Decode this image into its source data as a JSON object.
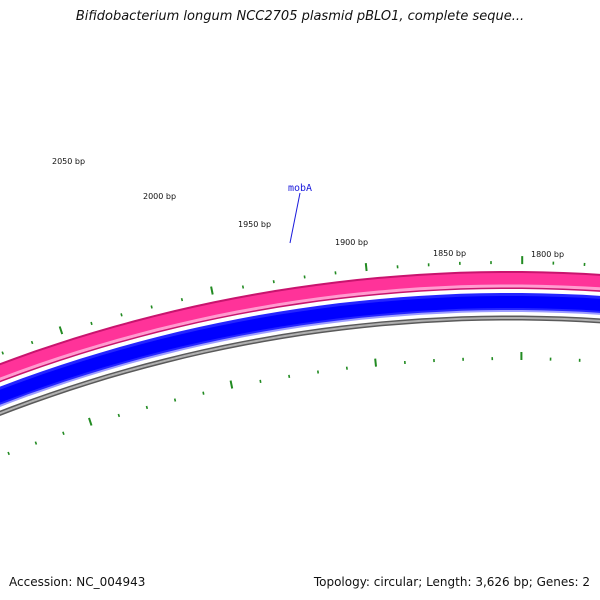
{
  "title": "Bifidobacterium longum NCC2705 plasmid pBLO1, complete seque...",
  "accession": "Accession: NC_004943",
  "summary": "Topology: circular; Length: 3,626 bp; Genes: 2",
  "tick_labels": [
    "2050 bp",
    "2000 bp",
    "1950 bp",
    "1900 bp",
    "1850 bp",
    "1800 bp"
  ],
  "gene_label": "mobA",
  "colors": {
    "gene_band": "#ff3399",
    "gene_band_dark": "#c8146e",
    "cds_band": "#0000ff",
    "backbone": "#808080",
    "tick": "#228b22",
    "gene_label": "#1a1adc"
  }
}
